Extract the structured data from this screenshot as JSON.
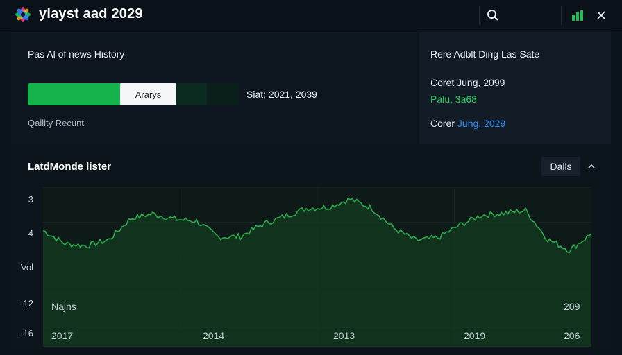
{
  "app": {
    "title": "ylayst aad 2029",
    "accent_color": "#16b24c",
    "link_color": "#2f8fff"
  },
  "toolbar": {
    "icons": [
      "search-icon",
      "chart-bars-icon",
      "close-icon"
    ]
  },
  "history_panel": {
    "title": "Pas Al of news History",
    "progress_fraction": 0.44,
    "analysis_button_label": "Ararys",
    "stat_text": "Siat; 2021, 2039",
    "quality_label": "Qaility Recunt"
  },
  "side_panel": {
    "title": "Rere Adblt Ding Las Sate",
    "line1": "Coret Jung, 2099",
    "line2": "Palu, 3a68",
    "line3_prefix": "Corer",
    "line3_date": "Jung, 2029"
  },
  "chart_panel": {
    "title": "LatdMonde lister",
    "range_button_label": "Dalls",
    "collapse_icon": "chevron-up-icon"
  },
  "chart_data": {
    "type": "area",
    "title": "LatdMonde lister",
    "xlabel": "",
    "ylabel": "",
    "y_tick_labels": [
      "3",
      "4",
      "Vol",
      "-12",
      "-16"
    ],
    "x_tick_labels": [
      "2017",
      "2014",
      "2013",
      "2019",
      "206"
    ],
    "annotations": [
      "Najns",
      "209"
    ],
    "grid": true,
    "line_color": "#2faa4d",
    "fill_color": "#123820",
    "ylim": [
      -16,
      8
    ],
    "x": [
      0,
      4,
      8,
      12,
      16,
      20,
      24,
      28,
      32,
      36,
      40,
      44,
      48,
      52,
      56,
      60,
      64,
      68,
      72,
      76,
      80,
      84,
      88,
      92,
      96,
      100
    ],
    "values": [
      1.5,
      -0.5,
      -0.8,
      0.1,
      3.3,
      4.0,
      3.2,
      2.9,
      0.5,
      0.6,
      2.4,
      3.6,
      4.8,
      5.0,
      6.2,
      4.8,
      1.8,
      0.0,
      0.4,
      2.3,
      3.8,
      4.1,
      4.5,
      0.2,
      -1.5,
      1.0
    ]
  }
}
